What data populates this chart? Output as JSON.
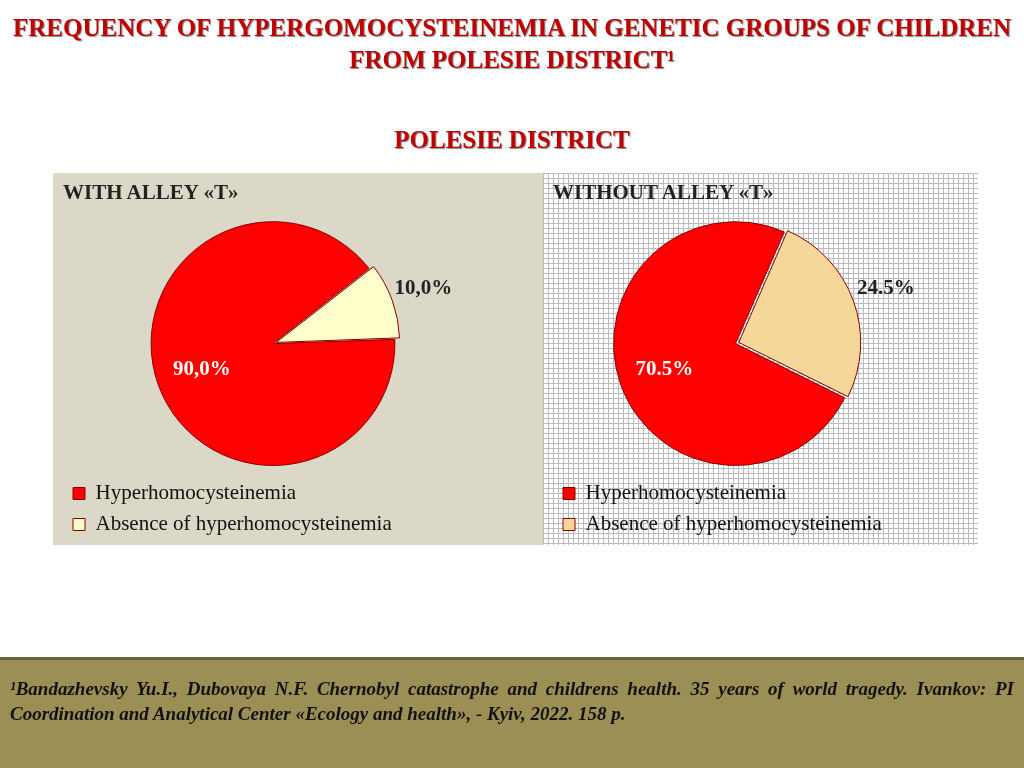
{
  "chart_data": [
    {
      "type": "other",
      "title": "FREQUENCY OF HYPERGOMOCYSTEINEMIA IN GENETIC GROUPS OF CHILDREN FROM POLESIE DISTRICT¹",
      "subtitle": "POLESIE DISTRICT",
      "annotations": [
        "¹Bandazhevsky Yu.I., Dubovaya N.F. Chernobyl catastrophe and childrens health. 35 years of world tragedy. Ivankov: PI Coordination and Analytical Center «Ecology and health», - Kyiv, 2022. 158 p."
      ]
    },
    {
      "type": "pie",
      "title": "WITH ALLEY «T»",
      "categories": [
        "Hyperhomocysteinemia",
        "Absence of hyperhomocysteinemia"
      ],
      "values": [
        90,
        10
      ],
      "colors": [
        "#ff0000",
        "#ffffcc"
      ],
      "value_labels": [
        "90,0%",
        "10,0%"
      ],
      "legend": "bottom left"
    },
    {
      "type": "pie",
      "title": "WITHOUT ALLEY «T»",
      "categories": [
        "Hyperhomocysteinemia",
        "Absence of hyperhomocysteinemia"
      ],
      "values": [
        70.5,
        24.5
      ],
      "colors": [
        "#ff0000",
        "#f5d79a"
      ],
      "value_labels": [
        "70.5%",
        "24.5%"
      ],
      "legend": "bottom left"
    }
  ]
}
